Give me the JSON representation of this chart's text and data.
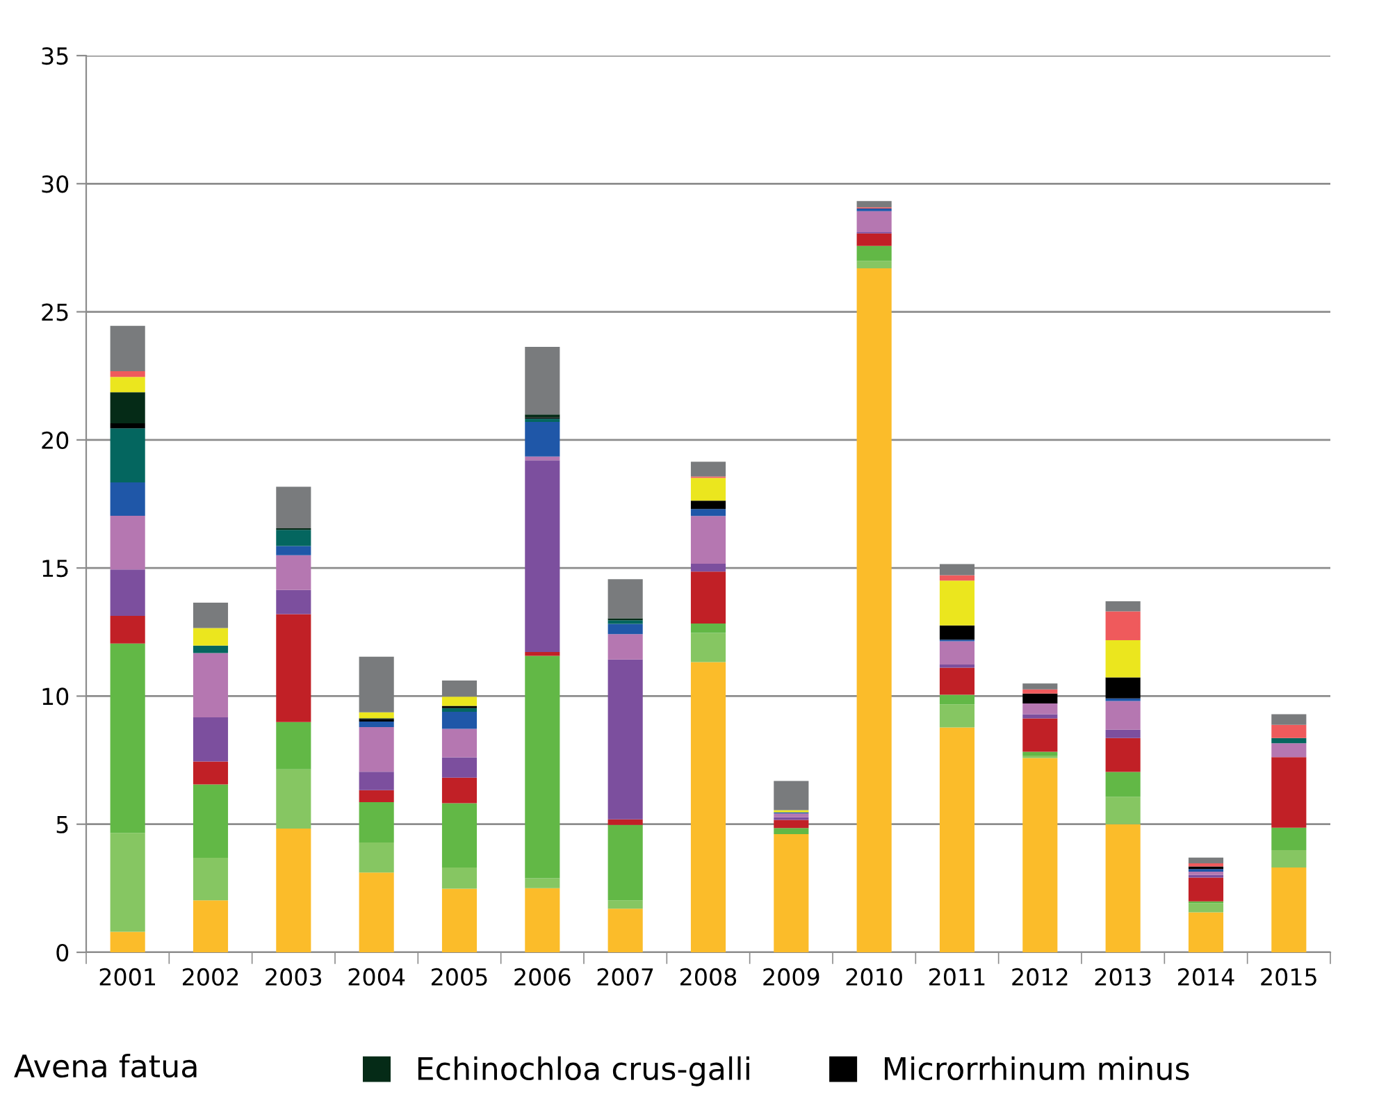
{
  "chart_data": {
    "type": "bar",
    "stacked": true,
    "categories": [
      "2001",
      "2002",
      "2003",
      "2004",
      "2005",
      "2006",
      "2007",
      "2008",
      "2009",
      "2010",
      "2011",
      "2012",
      "2013",
      "2014",
      "2015"
    ],
    "series": [
      {
        "color": "#fbbc2a",
        "values": [
          0.8,
          2.03,
          4.83,
          3.11,
          2.48,
          2.5,
          1.7,
          11.33,
          4.61,
          26.7,
          8.78,
          7.58,
          5.0,
          1.56,
          3.31
        ]
      },
      {
        "color": "#86c662",
        "values": [
          3.86,
          1.66,
          2.31,
          1.18,
          0.83,
          0.39,
          0.33,
          1.14,
          0,
          0.29,
          0.9,
          0.1,
          1.07,
          0.35,
          0.68
        ]
      },
      {
        "color": "#62b846",
        "values": [
          7.39,
          2.86,
          1.85,
          1.57,
          2.51,
          8.68,
          2.94,
          0.36,
          0.24,
          0.58,
          0.37,
          0.15,
          0.97,
          0.08,
          0.87
        ]
      },
      {
        "color": "#c12026",
        "values": [
          1.08,
          0.9,
          4.21,
          0.47,
          1.0,
          0.15,
          0.22,
          2.03,
          0.32,
          0.49,
          1.06,
          1.3,
          1.32,
          0.93,
          2.76
        ]
      },
      {
        "color": "#7c4f9e",
        "values": [
          1.81,
          1.72,
          0.94,
          0.72,
          0.79,
          7.48,
          6.24,
          0.31,
          0.1,
          0.05,
          0.12,
          0.16,
          0.33,
          0.1,
          0
        ]
      },
      {
        "color": "#b577b1",
        "values": [
          2.1,
          2.51,
          1.36,
          1.74,
          1.11,
          0.15,
          0.99,
          1.86,
          0.15,
          0.82,
          0.91,
          0.42,
          1.12,
          0.13,
          0.54
        ]
      },
      {
        "color": "#1f57a8",
        "values": [
          1.3,
          0,
          0.36,
          0.22,
          0.67,
          1.35,
          0.4,
          0.27,
          0.05,
          0.1,
          0.06,
          0,
          0.1,
          0.1,
          0
        ]
      },
      {
        "color": "#04665f",
        "values": [
          2.11,
          0.29,
          0.63,
          0,
          0.14,
          0.13,
          0.14,
          0,
          0,
          0,
          0,
          0,
          0,
          0,
          0.2
        ]
      },
      {
        "color": "#000000",
        "name": "Microrrhinum minus",
        "values": [
          0.2,
          0,
          0,
          0.1,
          0.09,
          0.05,
          0,
          0.33,
          0,
          0,
          0.56,
          0.39,
          0.82,
          0.1,
          0
        ]
      },
      {
        "color": "#052b17",
        "name": "Echinochloa crus-galli",
        "values": [
          1.21,
          0,
          0.06,
          0.03,
          0,
          0.11,
          0.08,
          0,
          0,
          0,
          0,
          0,
          0,
          0,
          0
        ]
      },
      {
        "color": "#ebe61e",
        "values": [
          0.6,
          0.69,
          0,
          0.23,
          0.36,
          0,
          0,
          0.89,
          0.08,
          0,
          1.75,
          0,
          1.45,
          0,
          0
        ]
      },
      {
        "color": "#ef5a5c",
        "values": [
          0.22,
          0,
          0,
          0,
          0,
          0,
          0,
          0.05,
          0,
          0.05,
          0.21,
          0.16,
          1.13,
          0.12,
          0.52
        ]
      },
      {
        "color": "#797b7d",
        "values": [
          1.77,
          0.99,
          1.62,
          2.17,
          0.63,
          2.64,
          1.52,
          0.58,
          1.14,
          0.24,
          0.43,
          0.23,
          0.39,
          0.23,
          0.41
        ]
      }
    ],
    "ylim": [
      0,
      35
    ],
    "yticks": [
      0,
      5,
      10,
      15,
      20,
      25,
      30,
      35
    ],
    "grid": "y",
    "legend": "bottom",
    "annotations": [
      "Avena fatua"
    ]
  }
}
